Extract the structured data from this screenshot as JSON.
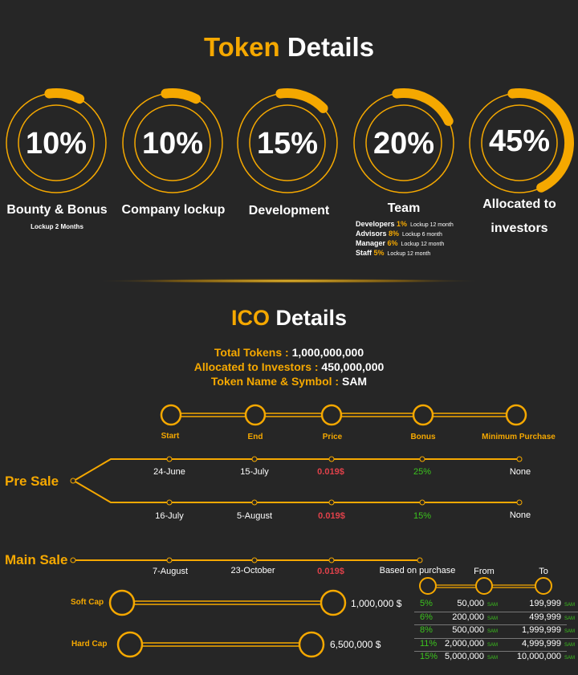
{
  "token_details": {
    "title_highlight": "Token",
    "title_rest": "Details",
    "items": [
      {
        "percent": 10,
        "label": "10%",
        "name": "Bounty & Bonus",
        "note": "Lockup 2 Months"
      },
      {
        "percent": 10,
        "label": "10%",
        "name": "Company lockup"
      },
      {
        "percent": 15,
        "label": "15%",
        "name": "Development"
      },
      {
        "percent": 20,
        "label": "20%",
        "name": "Team"
      },
      {
        "percent": 45,
        "label": "45%",
        "name_line1": "Allocated to",
        "name_line2": "investors"
      }
    ],
    "team_breakdown": [
      {
        "role": "Developers",
        "pct": "1%",
        "lockup": "Lockup 12 month"
      },
      {
        "role": "Advisors",
        "pct": "8%",
        "lockup": "Lockup 6 month"
      },
      {
        "role": "Manager",
        "pct": "6%",
        "lockup": "Lockup 12 month"
      },
      {
        "role": "Staff",
        "pct": "5%",
        "lockup": "Lockup 12 month"
      }
    ]
  },
  "ico_details": {
    "title_highlight": "ICO",
    "title_rest": "Details",
    "total_tokens_label": "Total Tokens :",
    "total_tokens": "1,000,000,000",
    "allocated_label": "Allocated to Investors :",
    "allocated": "450,000,000",
    "symbol_label": "Token  Name & Symbol :",
    "symbol": "SAM",
    "stages": [
      "Start",
      "End",
      "Price",
      "Bonus",
      "Minimum Purchase"
    ],
    "pre_sale": {
      "label": "Pre Sale",
      "rows": [
        [
          "24-June",
          "15-July",
          "0.019$",
          "25%",
          "None"
        ],
        [
          "16-July",
          "5-August",
          "0.019$",
          "15%",
          "None"
        ]
      ]
    },
    "main_sale": {
      "label": "Main Sale",
      "row": [
        "7-August",
        "23-October",
        "0.019$",
        "Based on purchase"
      ]
    },
    "soft_cap": {
      "label": "Soft Cap",
      "value": "1,000,000 $"
    },
    "hard_cap": {
      "label": "Hard Cap",
      "value": "6,500,000 $"
    },
    "bonus_table": {
      "from_label": "From",
      "to_label": "To",
      "unit": "SAM",
      "rows": [
        {
          "bonus": "5%",
          "from": "50,000",
          "to": "199,999"
        },
        {
          "bonus": "6%",
          "from": "200,000",
          "to": "499,999"
        },
        {
          "bonus": "8%",
          "from": "500,000",
          "to": "1,999,999"
        },
        {
          "bonus": "11%",
          "from": "2,000,000",
          "to": "4,999,999"
        },
        {
          "bonus": "15%",
          "from": "5,000,000",
          "to": "10,000,000"
        }
      ]
    }
  },
  "colors": {
    "accent": "#f5a800",
    "background": "#262626",
    "price": "#e0414a",
    "bonus": "#3cc31e"
  }
}
